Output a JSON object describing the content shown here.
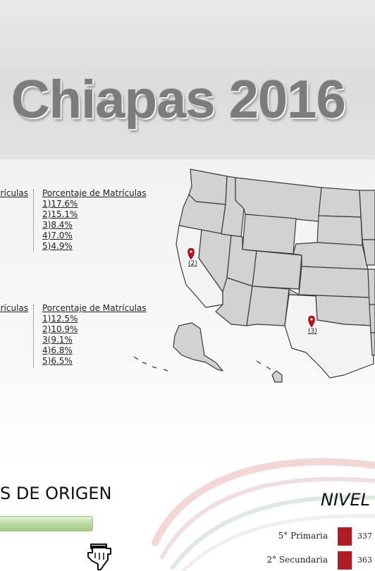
{
  "header": {
    "title": "Chiapas 2016"
  },
  "tables": [
    {
      "left_header": "trículas",
      "right_header": "Porcentaje de Matrículas",
      "rows": [
        "1)17.6%",
        "2)15.1%",
        "3)8.4%",
        "4)7.0%",
        "5)4.9%"
      ]
    },
    {
      "left_header": "trículas",
      "right_header": "Porcentaje de Matrículas",
      "rows": [
        "1)12.5%",
        "2)10.9%",
        "3(9.1%",
        "4)6.8%",
        "5)6.5%"
      ]
    }
  ],
  "map": {
    "markers": [
      {
        "label": "(2)",
        "color": "#c0101b"
      },
      {
        "label": "(3)",
        "color": "#c0101b"
      }
    ],
    "state_color": "#d2d2d2",
    "highlight_color": "#f4f4f4"
  },
  "origin_section": {
    "title": "S DE ORIGEN",
    "progress_fraction": 1.0,
    "progress_color": "#b0d294"
  },
  "level_section": {
    "title": "NIVEL E",
    "bars": [
      {
        "label": "5° Primaria",
        "value": "337"
      },
      {
        "label": "2° Secundaria",
        "value": "363"
      }
    ],
    "bar_color": "#b01c22"
  },
  "icons": {
    "pointer": "hand-pointer-icon",
    "marker": "map-marker-icon"
  }
}
